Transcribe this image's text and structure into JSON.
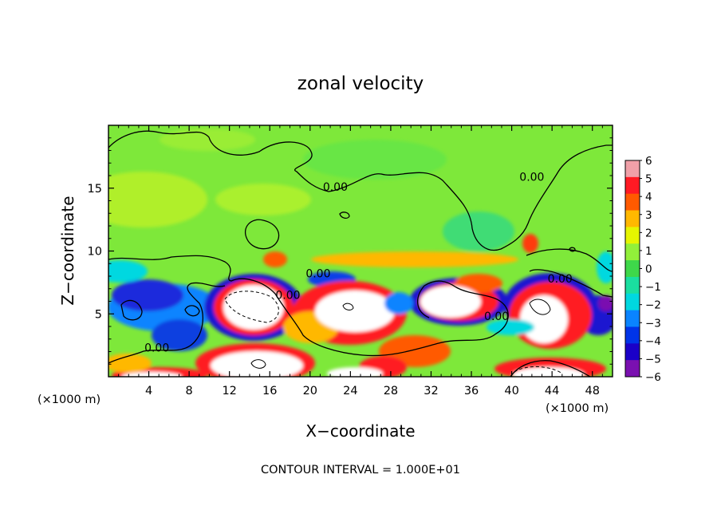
{
  "chart_data": {
    "type": "heatmap",
    "title": "zonal velocity",
    "xlabel": "X−coordinate",
    "ylabel": "Z−coordinate",
    "xunit_left": "(×1000 m)",
    "xunit_right": "(×1000 m)",
    "xlim": [
      0,
      50
    ],
    "ylim": [
      0,
      20
    ],
    "xticks": [
      4,
      8,
      12,
      16,
      20,
      24,
      28,
      32,
      36,
      40,
      44,
      48
    ],
    "yticks": [
      5,
      10,
      15
    ],
    "colorbar": {
      "ticks": [
        6,
        5,
        4,
        3,
        2,
        1,
        0,
        -1,
        -2,
        -3,
        -4,
        -5,
        -6
      ],
      "tick_labels": [
        "6",
        "5",
        "4",
        "3",
        "2",
        "1",
        "0",
        "−1",
        "−2",
        "−3",
        "−4",
        "−5",
        "−6"
      ],
      "range": [
        -6,
        6
      ]
    },
    "contour_labels": [
      {
        "text": "0.00",
        "x": 22.5,
        "z": 14.8
      },
      {
        "text": "0.00",
        "x": 42.0,
        "z": 15.6
      },
      {
        "text": "0.00",
        "x": 20.8,
        "z": 7.9
      },
      {
        "text": "0.00",
        "x": 17.8,
        "z": 6.2
      },
      {
        "text": "0.00",
        "x": 44.8,
        "z": 7.5
      },
      {
        "text": "0.00",
        "x": 38.5,
        "z": 4.5
      },
      {
        "text": "0.00",
        "x": 4.8,
        "z": 2.0
      }
    ],
    "contour_interval_text": "CONTOUR INTERVAL = 1.000E+01",
    "field_features": [
      {
        "kind": "max",
        "x": 14.5,
        "z": 5.5,
        "value": 12
      },
      {
        "kind": "max",
        "x": 23.5,
        "z": 5.5,
        "value": 10
      },
      {
        "kind": "max",
        "x": 32.5,
        "z": 5.5,
        "value": 8
      },
      {
        "kind": "max",
        "x": 43.0,
        "z": 5.0,
        "value": 10
      },
      {
        "kind": "max",
        "x": 15.0,
        "z": 1.0,
        "value": 10
      },
      {
        "kind": "max",
        "x": 44.5,
        "z": 0.5,
        "value": 8
      },
      {
        "kind": "min",
        "x": 6.0,
        "z": 5.0,
        "value": -5
      },
      {
        "kind": "min",
        "x": 44.0,
        "z": 3.5,
        "value": -5
      },
      {
        "kind": "min",
        "x": 1.0,
        "z": 5.5,
        "value": -4
      }
    ]
  },
  "colors": {
    "background_field": "#7ee83a",
    "palette": [
      "#7a10b0",
      "#1a00c8",
      "#0034e8",
      "#0a84ff",
      "#00d8e0",
      "#1adfa0",
      "#3ed84a",
      "#92f03a",
      "#e6f500",
      "#ffb800",
      "#ff5a00",
      "#ff1a24",
      "#f0a0a8"
    ]
  }
}
